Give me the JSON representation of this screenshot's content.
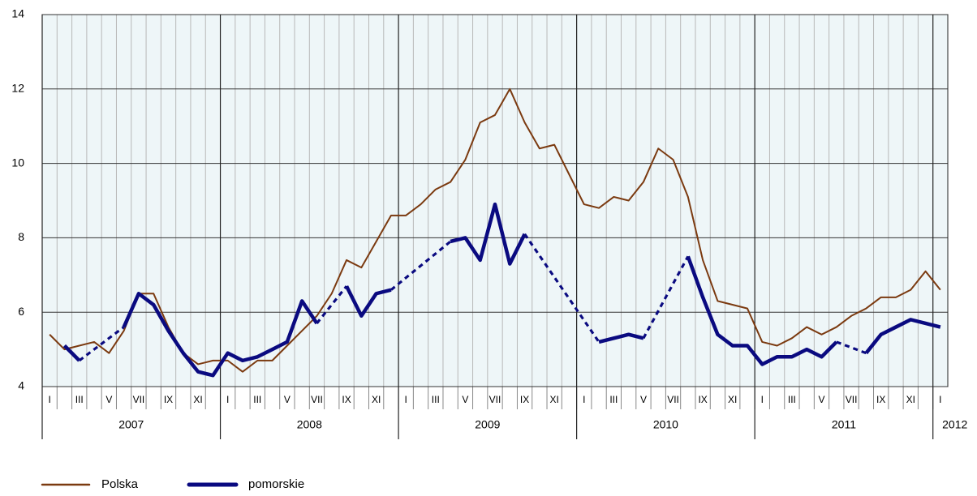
{
  "chart_data": {
    "type": "line",
    "categories": [
      "I",
      null,
      "III",
      null,
      "V",
      null,
      "VII",
      null,
      "IX",
      null,
      "XI",
      null,
      "I",
      null,
      "III",
      null,
      "V",
      null,
      "VII",
      null,
      "IX",
      null,
      "XI",
      null,
      "I",
      null,
      "III",
      null,
      "V",
      null,
      "VII",
      null,
      "IX",
      null,
      "XI",
      null,
      "I",
      null,
      "III",
      null,
      "V",
      null,
      "VII",
      null,
      "IX",
      null,
      "XI",
      null,
      "I",
      null,
      "III",
      null,
      "V",
      null,
      "VII",
      null,
      "IX",
      null,
      "XI",
      null,
      "I"
    ],
    "years": [
      "2007",
      "2008",
      "2009",
      "2010",
      "2011",
      "2012"
    ],
    "ylim": [
      4,
      14
    ],
    "yticks": [
      4,
      6,
      8,
      10,
      12,
      14
    ],
    "grid": true,
    "dashed_gaps": true,
    "series": [
      {
        "name": "Polska",
        "color": "#7b3a10",
        "width": 2,
        "values": [
          5.4,
          5.0,
          5.1,
          5.2,
          4.9,
          5.5,
          6.5,
          6.5,
          5.6,
          4.9,
          4.6,
          4.7,
          4.7,
          4.4,
          4.7,
          4.7,
          5.1,
          5.5,
          5.9,
          6.5,
          7.4,
          7.2,
          7.9,
          8.6,
          8.6,
          8.9,
          9.3,
          9.5,
          10.1,
          11.1,
          11.3,
          12.0,
          11.1,
          10.4,
          10.5,
          9.7,
          8.9,
          8.8,
          9.1,
          9.0,
          9.5,
          10.4,
          10.1,
          9.1,
          7.4,
          6.3,
          6.2,
          6.1,
          5.2,
          5.1,
          5.3,
          5.6,
          5.4,
          5.6,
          5.9,
          6.1,
          6.4,
          6.4,
          6.6,
          7.1,
          6.6
        ]
      },
      {
        "name": "pomorskie",
        "color": "#0a0a80",
        "width": 4.5,
        "values": [
          null,
          5.1,
          4.7,
          null,
          null,
          5.6,
          6.5,
          6.2,
          5.5,
          4.9,
          4.4,
          4.3,
          4.9,
          4.7,
          4.8,
          5.0,
          5.2,
          6.3,
          5.7,
          null,
          6.7,
          5.9,
          6.5,
          6.6,
          null,
          null,
          null,
          7.9,
          8.0,
          7.4,
          8.9,
          7.3,
          8.1,
          null,
          null,
          null,
          null,
          5.2,
          5.3,
          5.4,
          5.3,
          null,
          null,
          7.5,
          6.4,
          5.4,
          5.1,
          5.1,
          4.6,
          4.8,
          4.8,
          5.0,
          4.8,
          5.2,
          null,
          4.9,
          5.4,
          5.6,
          5.8,
          5.7,
          5.6
        ]
      }
    ]
  }
}
